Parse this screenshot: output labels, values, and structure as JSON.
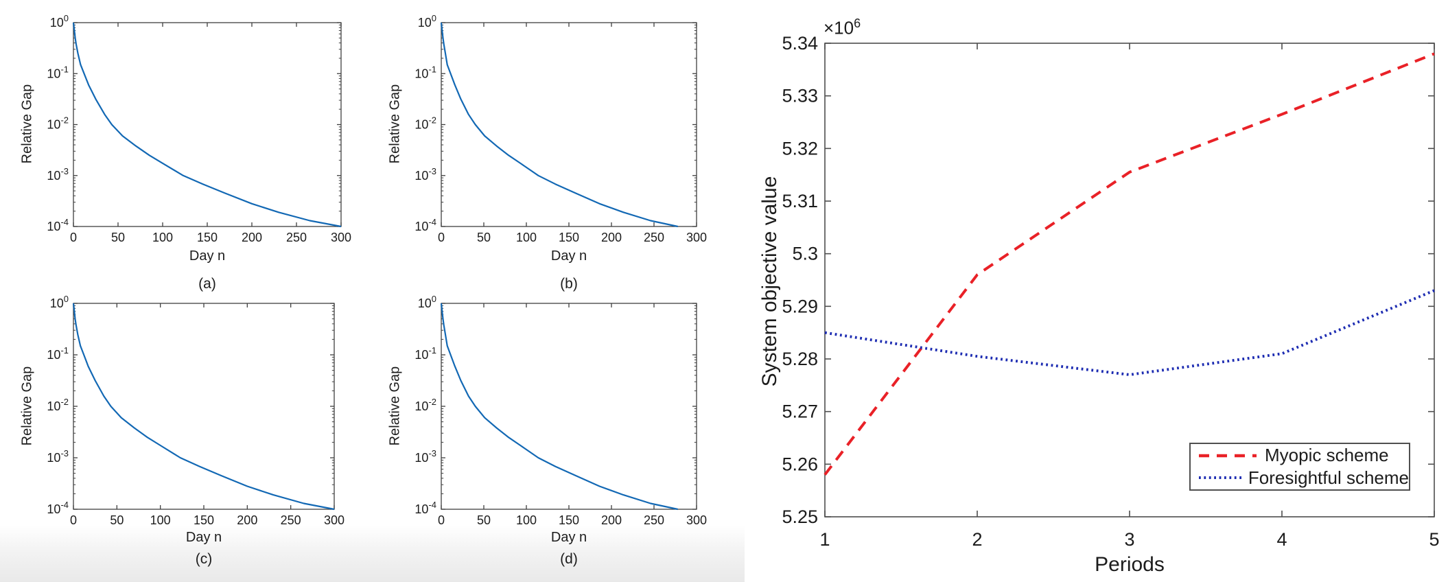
{
  "colors": {
    "convergence_line": "#1268b4",
    "myopic_line": "#e92127",
    "foresightful_line": "#1e2db2",
    "axis": "#3f3f3f",
    "text": "#1c1c1c"
  },
  "chart_data": [
    {
      "id": "a",
      "type": "line",
      "title": "(a)",
      "xlabel": "Day n",
      "ylabel": "Relative Gap",
      "x_scale": "linear",
      "y_scale": "log10",
      "xlim": [
        0,
        300
      ],
      "ylim": [
        0.0001,
        1
      ],
      "x_ticks": [
        0,
        50,
        100,
        150,
        200,
        250,
        300
      ],
      "y_tick_base": "10",
      "y_tick_exponents": [
        0,
        -1,
        -2,
        -3,
        -4
      ],
      "grid": false,
      "series": [
        {
          "name": "relative-gap",
          "points": [
            [
              0,
              1
            ],
            [
              1,
              0.71
            ],
            [
              2,
              0.5
            ],
            [
              3,
              0.38
            ],
            [
              5,
              0.25
            ],
            [
              8,
              0.15
            ],
            [
              12,
              0.1
            ],
            [
              17,
              0.06
            ],
            [
              25,
              0.0316
            ],
            [
              35,
              0.0158
            ],
            [
              43,
              0.01
            ],
            [
              55,
              0.006
            ],
            [
              70,
              0.0038
            ],
            [
              85,
              0.0025
            ],
            [
              100,
              0.00174
            ],
            [
              123,
              0.001
            ],
            [
              145,
              0.00068
            ],
            [
              170,
              0.00045
            ],
            [
              200,
              0.00028
            ],
            [
              230,
              0.00019
            ],
            [
              265,
              0.00013
            ],
            [
              300,
              0.0001
            ]
          ]
        }
      ]
    },
    {
      "id": "b",
      "type": "line",
      "title": "(b)",
      "xlabel": "Day n",
      "ylabel": "Relative Gap",
      "x_scale": "linear",
      "y_scale": "log10",
      "xlim": [
        0,
        300
      ],
      "ylim": [
        0.0001,
        1
      ],
      "x_ticks": [
        0,
        50,
        100,
        150,
        200,
        250,
        300
      ],
      "y_tick_base": "10",
      "y_tick_exponents": [
        0,
        -1,
        -2,
        -3,
        -4
      ],
      "grid": false,
      "series": [
        {
          "name": "relative-gap",
          "points": [
            [
              0,
              1
            ],
            [
              1,
              0.71
            ],
            [
              2,
              0.5
            ],
            [
              3,
              0.38
            ],
            [
              5,
              0.24
            ],
            [
              7,
              0.15
            ],
            [
              11,
              0.1
            ],
            [
              16,
              0.06
            ],
            [
              23,
              0.0316
            ],
            [
              32,
              0.0158
            ],
            [
              40,
              0.01
            ],
            [
              51,
              0.006
            ],
            [
              65,
              0.0038
            ],
            [
              79,
              0.0025
            ],
            [
              93,
              0.00174
            ],
            [
              114,
              0.001
            ],
            [
              134,
              0.00068
            ],
            [
              158,
              0.00045
            ],
            [
              186,
              0.00028
            ],
            [
              214,
              0.00019
            ],
            [
              246,
              0.00013
            ],
            [
              278,
              0.0001
            ]
          ]
        }
      ]
    },
    {
      "id": "c",
      "type": "line",
      "title": "(c)",
      "xlabel": "Day n",
      "ylabel": "Relative Gap",
      "x_scale": "linear",
      "y_scale": "log10",
      "xlim": [
        0,
        300
      ],
      "ylim": [
        0.0001,
        1
      ],
      "x_ticks": [
        0,
        50,
        100,
        150,
        200,
        250,
        300
      ],
      "y_tick_base": "10",
      "y_tick_exponents": [
        0,
        -1,
        -2,
        -3,
        -4
      ],
      "grid": false,
      "series": [
        {
          "name": "relative-gap",
          "points": [
            [
              0,
              1
            ],
            [
              1,
              0.71
            ],
            [
              2,
              0.5
            ],
            [
              3,
              0.38
            ],
            [
              5,
              0.25
            ],
            [
              8,
              0.15
            ],
            [
              12,
              0.1
            ],
            [
              17,
              0.06
            ],
            [
              25,
              0.0316
            ],
            [
              35,
              0.0158
            ],
            [
              43,
              0.01
            ],
            [
              55,
              0.006
            ],
            [
              70,
              0.0038
            ],
            [
              85,
              0.0025
            ],
            [
              100,
              0.00174
            ],
            [
              123,
              0.001
            ],
            [
              145,
              0.00068
            ],
            [
              170,
              0.00045
            ],
            [
              200,
              0.00028
            ],
            [
              230,
              0.00019
            ],
            [
              265,
              0.00013
            ],
            [
              300,
              0.0001
            ]
          ]
        }
      ]
    },
    {
      "id": "d",
      "type": "line",
      "title": "(d)",
      "xlabel": "Day n",
      "ylabel": "Relative Gap",
      "x_scale": "linear",
      "y_scale": "log10",
      "xlim": [
        0,
        300
      ],
      "ylim": [
        0.0001,
        1
      ],
      "x_ticks": [
        0,
        50,
        100,
        150,
        200,
        250,
        300
      ],
      "y_tick_base": "10",
      "y_tick_exponents": [
        0,
        -1,
        -2,
        -3,
        -4
      ],
      "grid": false,
      "series": [
        {
          "name": "relative-gap",
          "points": [
            [
              0,
              1
            ],
            [
              1,
              0.71
            ],
            [
              2,
              0.5
            ],
            [
              3,
              0.38
            ],
            [
              5,
              0.24
            ],
            [
              7,
              0.15
            ],
            [
              11,
              0.1
            ],
            [
              16,
              0.06
            ],
            [
              23,
              0.0316
            ],
            [
              32,
              0.0158
            ],
            [
              40,
              0.01
            ],
            [
              51,
              0.006
            ],
            [
              65,
              0.0038
            ],
            [
              79,
              0.0025
            ],
            [
              93,
              0.00174
            ],
            [
              114,
              0.001
            ],
            [
              134,
              0.00068
            ],
            [
              158,
              0.00045
            ],
            [
              186,
              0.00028
            ],
            [
              214,
              0.00019
            ],
            [
              246,
              0.00013
            ],
            [
              278,
              0.0001
            ]
          ]
        }
      ]
    },
    {
      "id": "main",
      "type": "line",
      "title": "",
      "xlabel": "Periods",
      "ylabel": "System objective value",
      "y_multiplier_base": "×10",
      "y_multiplier_exp": "6",
      "y_unit_multiplier": 1000000,
      "x_scale": "linear",
      "y_scale": "linear",
      "xlim": [
        1,
        5
      ],
      "ylim": [
        5.25,
        5.34
      ],
      "x_ticks": [
        1,
        2,
        3,
        4,
        5
      ],
      "y_ticks": [
        "5.25",
        "5.26",
        "5.27",
        "5.28",
        "5.29",
        "5.3",
        "5.31",
        "5.32",
        "5.33",
        "5.34"
      ],
      "grid": false,
      "legend": {
        "position": "bottom-right"
      },
      "series": [
        {
          "name": "Myopic scheme",
          "style": "dashed",
          "color": "#e92127",
          "x": [
            1,
            2,
            3,
            4,
            5
          ],
          "values": [
            5.258,
            5.296,
            5.3155,
            5.3265,
            5.338
          ]
        },
        {
          "name": "Foresightful scheme",
          "style": "dotted",
          "color": "#1e2db2",
          "x": [
            1,
            2,
            3,
            4,
            5
          ],
          "values": [
            5.285,
            5.2805,
            5.277,
            5.281,
            5.293
          ]
        }
      ]
    }
  ]
}
